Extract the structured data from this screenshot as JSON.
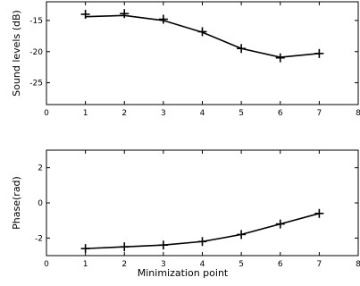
{
  "chart_data": [
    {
      "type": "line",
      "xlabel": "",
      "ylabel": "Sound levels (dB)",
      "xlim": [
        0,
        8
      ],
      "ylim": [
        -28.5,
        -12
      ],
      "xticks": [
        "0",
        "1",
        "2",
        "3",
        "4",
        "5",
        "6",
        "7",
        "8"
      ],
      "yticks": [
        {
          "value": -15,
          "label": "-15"
        },
        {
          "value": -20,
          "label": "-20"
        },
        {
          "value": -25,
          "label": "-25"
        }
      ],
      "grid": false,
      "series": [
        {
          "x": [
            1,
            2,
            3,
            4,
            5,
            6,
            7
          ],
          "line": [
            -14.4,
            -14.2,
            -15.0,
            -16.9,
            -19.5,
            -20.9,
            -20.3
          ],
          "markers": [
            -14.0,
            -13.9,
            -14.8,
            -16.8,
            -19.5,
            -21.0,
            -20.3
          ]
        }
      ]
    },
    {
      "type": "line",
      "xlabel": "Minimization point",
      "ylabel": "Phase(rad)",
      "xlim": [
        0,
        8
      ],
      "ylim": [
        -3,
        3
      ],
      "xticks": [
        "0",
        "1",
        "2",
        "3",
        "4",
        "5",
        "6",
        "7",
        "8"
      ],
      "yticks": [
        {
          "value": 2,
          "label": "2"
        },
        {
          "value": 0,
          "label": "0"
        },
        {
          "value": -2,
          "label": "-2"
        }
      ],
      "grid": false,
      "series": [
        {
          "x": [
            1,
            2,
            3,
            4,
            5,
            6,
            7
          ],
          "line": [
            -2.6,
            -2.5,
            -2.4,
            -2.2,
            -1.8,
            -1.2,
            -0.6
          ],
          "markers": [
            -2.6,
            -2.5,
            -2.4,
            -2.2,
            -1.8,
            -1.2,
            -0.6
          ]
        }
      ]
    }
  ]
}
